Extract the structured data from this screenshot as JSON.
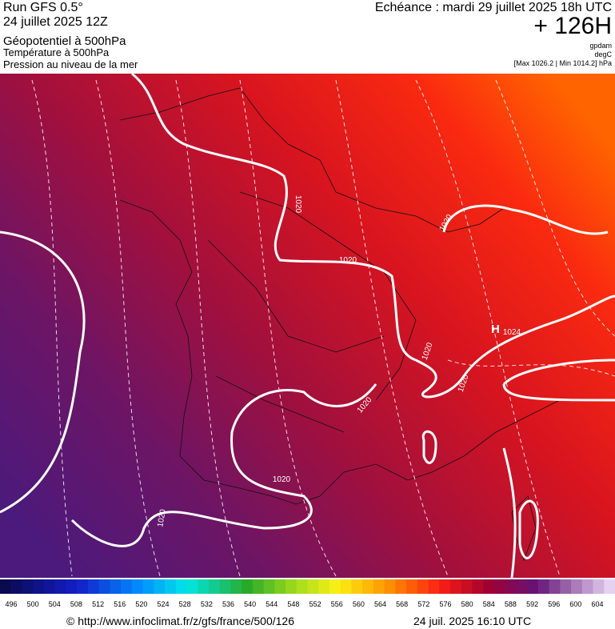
{
  "header": {
    "run": "Run GFS 0.5°",
    "run_date": "24 juillet 2025 12Z",
    "field": "Géopotentiel à 500hPa",
    "field2": "Température à 500hPa",
    "field3": "Pression au niveau de la mer",
    "valid": "Echéance : mardi 29 juillet 2025 18h UTC",
    "lead": "+ 126H",
    "unit1": "gpdam",
    "unit2": "degC",
    "range": "[Max 1026.2 | Min 1014.2] hPa"
  },
  "map": {
    "isobar_labels": [
      "1020",
      "1020",
      "1020",
      "1020",
      "1020",
      "1020",
      "1020",
      "1020",
      "1024"
    ],
    "high": "H"
  },
  "colorbar": {
    "labels": [
      496,
      500,
      504,
      508,
      512,
      516,
      520,
      524,
      528,
      532,
      536,
      540,
      544,
      548,
      552,
      556,
      560,
      564,
      568,
      572,
      576,
      580,
      584,
      588,
      592,
      596,
      600,
      604
    ]
  },
  "footer": {
    "url": "© http://www.infoclimat.fr/z/gfs/france/500/126",
    "timestamp": "24 juil. 2025 16:10 UTC"
  }
}
